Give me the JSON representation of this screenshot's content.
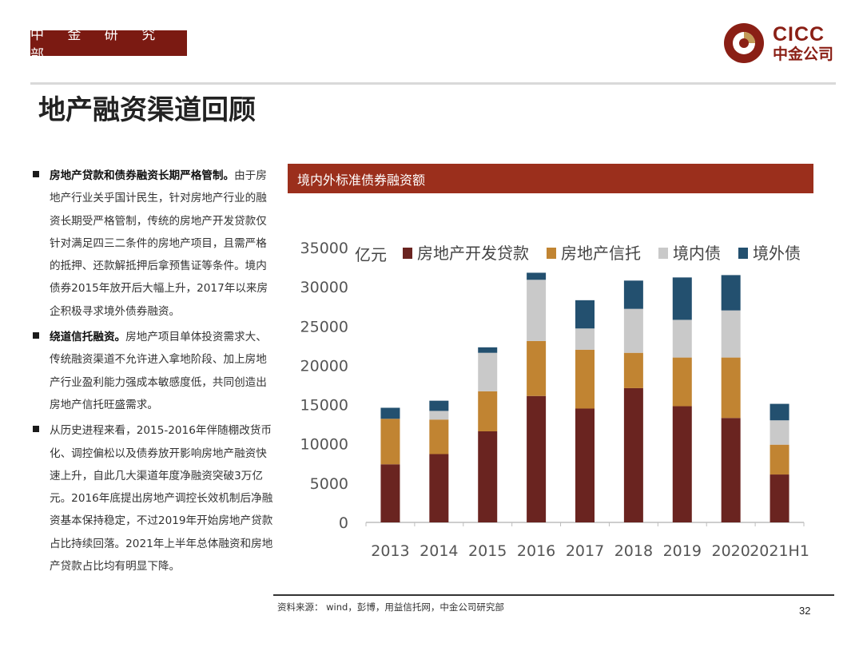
{
  "header": {
    "dept_badge": "中 金 研 究 部",
    "logo_en": "CICC",
    "logo_cn": "中金公司"
  },
  "page": {
    "title": "地产融资渠道回顾",
    "source": "资料来源： wind，彭博，用益信托网，中金公司研究部",
    "page_number": "32"
  },
  "bullets": [
    {
      "bold": "房地产贷款和债券融资长期严格管制。",
      "text": "由于房地产行业关乎国计民生，针对房地产行业的融资长期受严格管制，传统的房地产开发贷款仅针对满足四三二条件的房地产项目，且需严格的抵押、还款解抵押后拿预售证等条件。境内债券2015年放开后大幅上升，2017年以来房企积极寻求境外债券融资。"
    },
    {
      "bold": "绕道信托融资。",
      "text": "房地产项目单体投资需求大、传统融资渠道不允许进入拿地阶段、加上房地产行业盈利能力强成本敏感度低，共同创造出房地产信托旺盛需求。"
    },
    {
      "bold": "",
      "text": "从历史进程来看，2015-2016年伴随棚改货币化、调控偏松以及债券放开影响房地产融资快速上升，自此几大渠道年度净融资突破3万亿元。2016年底提出房地产调控长效机制后净融资基本保持稳定，不过2019年开始房地产贷款占比持续回落。2021年上半年总体融资和房地产贷款占比均有明显下降。"
    }
  ],
  "chart_header": "境内外标准债券融资额",
  "chart_data": {
    "type": "bar",
    "stacked": true,
    "title": "境内外标准债券融资额",
    "unit_label": "亿元",
    "xlabel": "",
    "ylabel": "",
    "ylim": [
      0,
      35000
    ],
    "yticks": [
      0,
      5000,
      10000,
      15000,
      20000,
      25000,
      30000,
      35000
    ],
    "categories": [
      "2013",
      "2014",
      "2015",
      "2016",
      "2017",
      "2018",
      "2019",
      "2020",
      "2021H1"
    ],
    "series": [
      {
        "name": "房地产开发贷款",
        "color": "#6a2420",
        "values": [
          7400,
          8700,
          11600,
          16100,
          14500,
          17100,
          14800,
          13300,
          6100
        ]
      },
      {
        "name": "房地产信托",
        "color": "#c18432",
        "values": [
          5800,
          4400,
          5100,
          7000,
          7500,
          4500,
          6200,
          7700,
          3800
        ]
      },
      {
        "name": "境内债",
        "color": "#c9c9c9",
        "values": [
          0,
          1100,
          4900,
          7800,
          2700,
          5600,
          4800,
          6000,
          3100
        ]
      },
      {
        "name": "境外债",
        "color": "#23506f",
        "values": [
          1400,
          1300,
          700,
          900,
          3600,
          3600,
          5400,
          4500,
          2100
        ]
      }
    ]
  }
}
